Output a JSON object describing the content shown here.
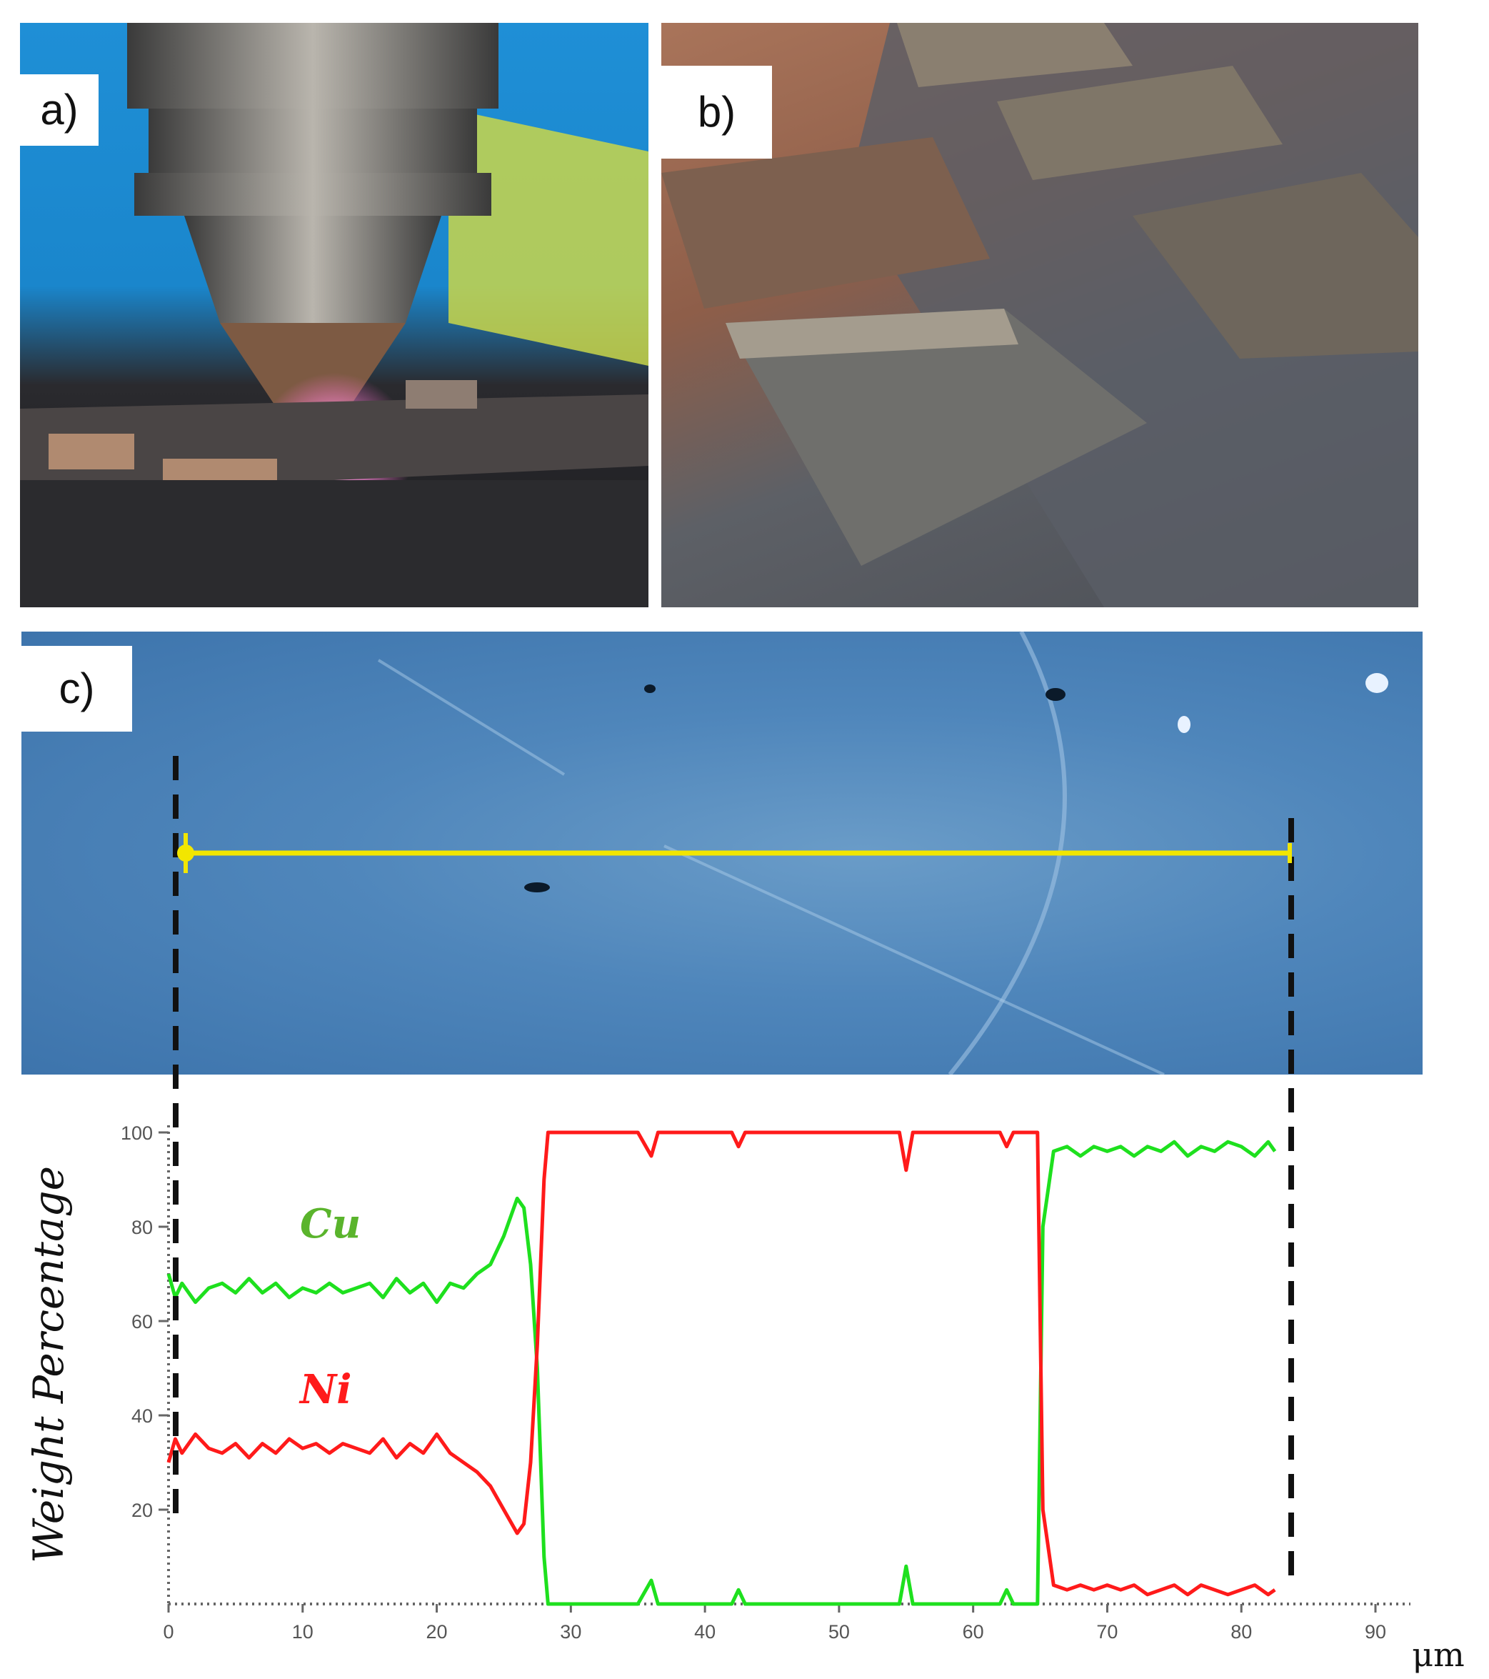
{
  "panels": {
    "a": {
      "label": "a)"
    },
    "b": {
      "label": "b)"
    },
    "c": {
      "label": "c)"
    }
  },
  "colors": {
    "cu": "#1ee01e",
    "ni": "#ff1a1a",
    "scan_line": "#f2e600",
    "guides": "#111111"
  },
  "chart_data": {
    "type": "line",
    "xlabel": "μm",
    "ylabel": "Weight Percentage",
    "xlim": [
      0,
      92
    ],
    "ylim": [
      0,
      100
    ],
    "x_ticks": [
      0,
      10,
      20,
      30,
      40,
      50,
      60,
      70,
      80,
      90
    ],
    "y_ticks": [
      20,
      40,
      60,
      80,
      100
    ],
    "grid": false,
    "legend": "inline-labels",
    "series": [
      {
        "name": "Cu",
        "x": [
          0,
          0.5,
          1,
          2,
          3,
          4,
          5,
          6,
          7,
          8,
          9,
          10,
          11,
          12,
          13,
          14,
          15,
          16,
          17,
          18,
          19,
          20,
          21,
          22,
          23,
          24,
          25,
          26,
          26.5,
          27,
          27.5,
          28,
          28.3,
          29,
          30,
          35,
          36,
          36.5,
          37,
          42,
          42.5,
          43,
          50,
          54.5,
          55,
          55.5,
          60,
          62,
          62.5,
          63,
          64.8,
          65.2,
          66,
          67,
          68,
          69,
          70,
          71,
          72,
          73,
          74,
          75,
          76,
          77,
          78,
          79,
          80,
          81,
          82,
          82.5
        ],
        "values": [
          70,
          65,
          68,
          64,
          67,
          68,
          66,
          69,
          66,
          68,
          65,
          67,
          66,
          68,
          66,
          67,
          68,
          65,
          69,
          66,
          68,
          64,
          68,
          67,
          70,
          72,
          78,
          86,
          84,
          72,
          50,
          10,
          0,
          0,
          0,
          0,
          5,
          0,
          0,
          0,
          3,
          0,
          0,
          0,
          8,
          0,
          0,
          0,
          3,
          0,
          0,
          80,
          96,
          97,
          95,
          97,
          96,
          97,
          95,
          97,
          96,
          98,
          95,
          97,
          96,
          98,
          97,
          95,
          98,
          96
        ]
      },
      {
        "name": "Ni",
        "x": [
          0,
          0.5,
          1,
          2,
          3,
          4,
          5,
          6,
          7,
          8,
          9,
          10,
          11,
          12,
          13,
          14,
          15,
          16,
          17,
          18,
          19,
          20,
          21,
          22,
          23,
          24,
          25,
          26,
          26.5,
          27,
          27.5,
          28,
          28.3,
          29,
          35,
          36,
          36.5,
          37,
          42,
          42.5,
          43,
          50,
          54.5,
          55,
          55.5,
          60,
          62,
          62.5,
          63,
          64.8,
          65.2,
          66,
          67,
          68,
          69,
          70,
          71,
          72,
          73,
          74,
          75,
          76,
          77,
          78,
          79,
          80,
          81,
          82,
          82.5
        ],
        "values": [
          30,
          35,
          32,
          36,
          33,
          32,
          34,
          31,
          34,
          32,
          35,
          33,
          34,
          32,
          34,
          33,
          32,
          35,
          31,
          34,
          32,
          36,
          32,
          30,
          28,
          25,
          20,
          15,
          17,
          30,
          55,
          90,
          100,
          100,
          100,
          95,
          100,
          100,
          100,
          97,
          100,
          100,
          100,
          92,
          100,
          100,
          100,
          97,
          100,
          100,
          20,
          4,
          3,
          4,
          3,
          4,
          3,
          4,
          2,
          3,
          4,
          2,
          4,
          3,
          2,
          3,
          4,
          2,
          3
        ]
      }
    ]
  }
}
